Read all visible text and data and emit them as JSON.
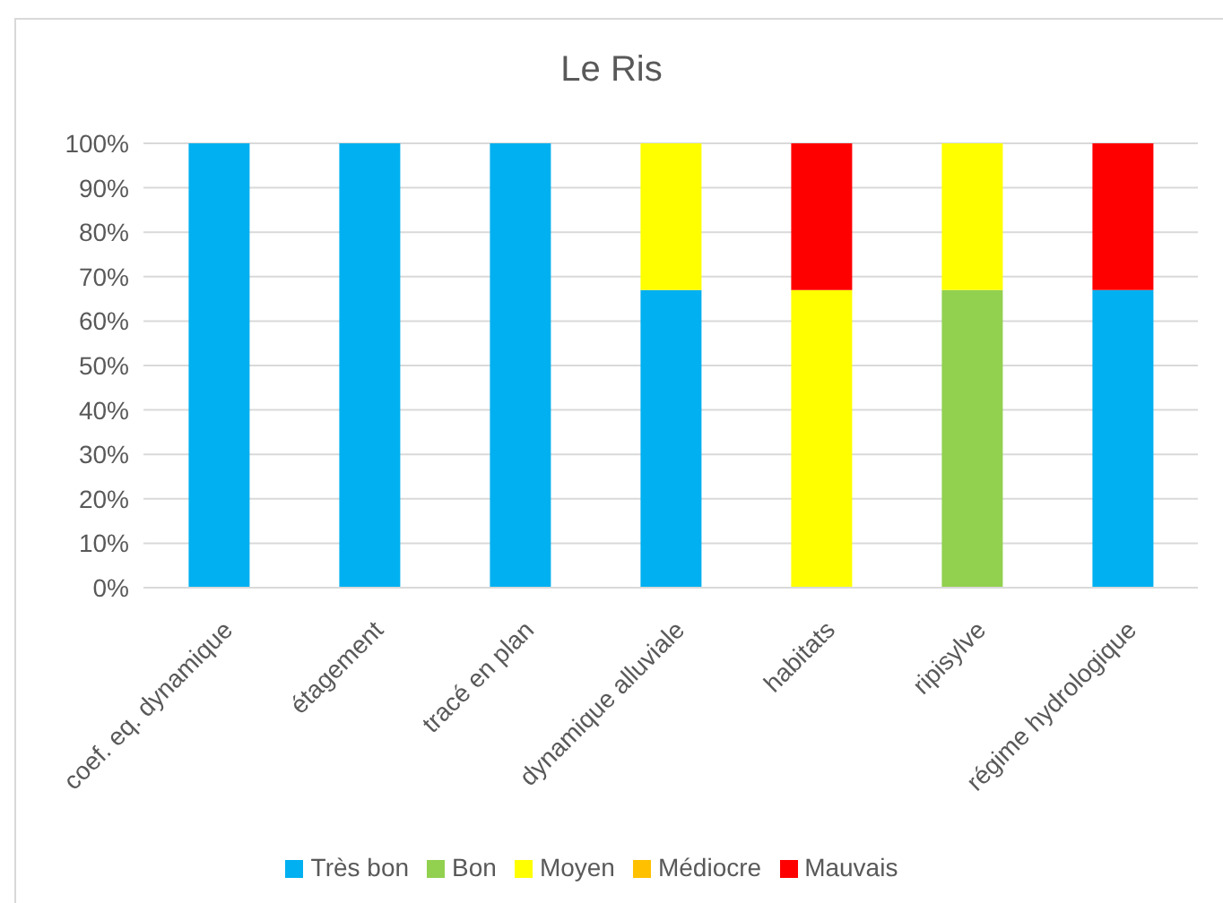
{
  "chart_data": {
    "type": "bar",
    "title": "Le Ris",
    "categories": [
      "coef. eq. dynamique",
      "étagement",
      "tracé en plan",
      "dynamique alluviale",
      "habitats",
      "ripisylve",
      "régime hydrologique"
    ],
    "stacked": true,
    "series": [
      {
        "name": "Très bon",
        "color": "#00b0f0",
        "values": [
          100,
          100,
          100,
          67,
          0,
          0,
          67
        ]
      },
      {
        "name": "Bon",
        "color": "#92d050",
        "values": [
          0,
          0,
          0,
          0,
          0,
          67,
          0
        ]
      },
      {
        "name": "Moyen",
        "color": "#ffff00",
        "values": [
          0,
          0,
          0,
          33,
          67,
          33,
          0
        ]
      },
      {
        "name": "Médiocre",
        "color": "#ffc000",
        "values": [
          0,
          0,
          0,
          0,
          0,
          0,
          0
        ]
      },
      {
        "name": "Mauvais",
        "color": "#ff0000",
        "values": [
          0,
          0,
          0,
          0,
          33,
          0,
          33
        ]
      }
    ],
    "ylim": [
      0,
      100
    ],
    "yticks": [
      {
        "value": 0,
        "label": "0%"
      },
      {
        "value": 10,
        "label": "10%"
      },
      {
        "value": 20,
        "label": "20%"
      },
      {
        "value": 30,
        "label": "30%"
      },
      {
        "value": 40,
        "label": "40%"
      },
      {
        "value": 50,
        "label": "50%"
      },
      {
        "value": 60,
        "label": "60%"
      },
      {
        "value": 70,
        "label": "70%"
      },
      {
        "value": 80,
        "label": "80%"
      },
      {
        "value": 90,
        "label": "90%"
      },
      {
        "value": 100,
        "label": "100%"
      }
    ],
    "grid": "y",
    "legend": "bottom"
  }
}
